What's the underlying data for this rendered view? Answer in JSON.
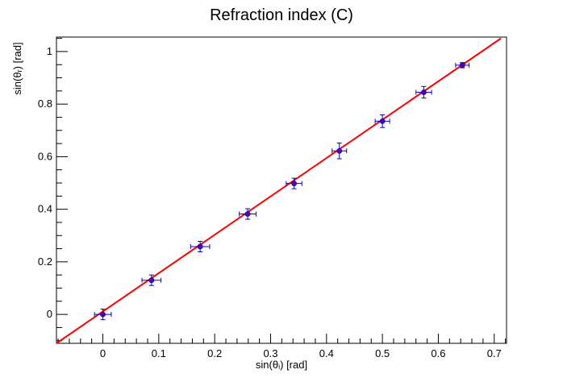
{
  "chart_data": {
    "type": "scatter",
    "title": "Refraction index (C)",
    "xlabel": "sin(θᵢ) [rad]",
    "ylabel": "sin(θᵣ) [rad]",
    "xlim": [
      -0.083,
      0.722
    ],
    "ylim": [
      -0.11,
      1.055
    ],
    "xticks": [
      0,
      0.1,
      0.2,
      0.3,
      0.4,
      0.5,
      0.6,
      0.7
    ],
    "xtick_labels": [
      "0",
      "0.1",
      "0.2",
      "0.3",
      "0.4",
      "0.5",
      "0.6",
      "0.7"
    ],
    "yticks": [
      0,
      0.2,
      0.4,
      0.6,
      0.8,
      1
    ],
    "ytick_labels": [
      "0",
      "0.2",
      "0.4",
      "0.6",
      "0.8",
      "1"
    ],
    "grid": false,
    "series": [
      {
        "kind": "points-with-errors",
        "color": "#0000cc",
        "marker_color": "#5a00a0",
        "x": [
          0.0,
          0.087,
          0.174,
          0.259,
          0.342,
          0.423,
          0.5,
          0.574,
          0.643
        ],
        "y": [
          0.0,
          0.13,
          0.258,
          0.382,
          0.498,
          0.622,
          0.735,
          0.845,
          0.948
        ],
        "xerr": [
          0.015,
          0.017,
          0.017,
          0.015,
          0.014,
          0.013,
          0.013,
          0.014,
          0.012
        ],
        "yerr": [
          0.02,
          0.02,
          0.02,
          0.02,
          0.02,
          0.03,
          0.024,
          0.022,
          0.01
        ]
      },
      {
        "kind": "fit-line",
        "color": "#ff0000",
        "x": [
          -0.083,
          0.712
        ],
        "y": [
          -0.11,
          1.05
        ]
      }
    ]
  }
}
